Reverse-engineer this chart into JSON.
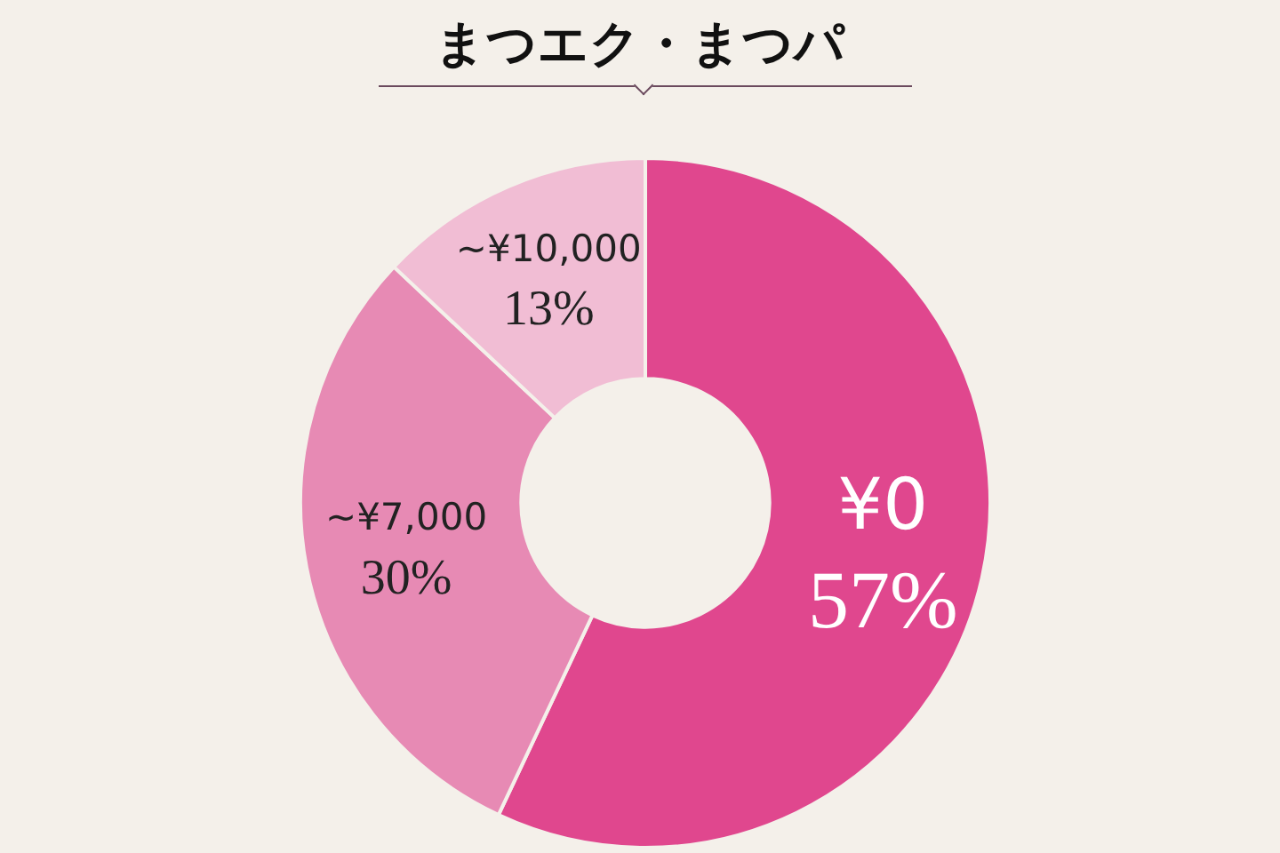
{
  "chart_data": {
    "type": "donut",
    "title": "まつエク・まつパ",
    "categories": [
      "¥0",
      "~¥7,000",
      "~¥10,000"
    ],
    "values": [
      57,
      30,
      13
    ],
    "colors": [
      "#e0478e",
      "#e78ab4",
      "#f1bdd4"
    ],
    "value_labels": [
      "57%",
      "30%",
      "13%"
    ],
    "legend": false
  }
}
